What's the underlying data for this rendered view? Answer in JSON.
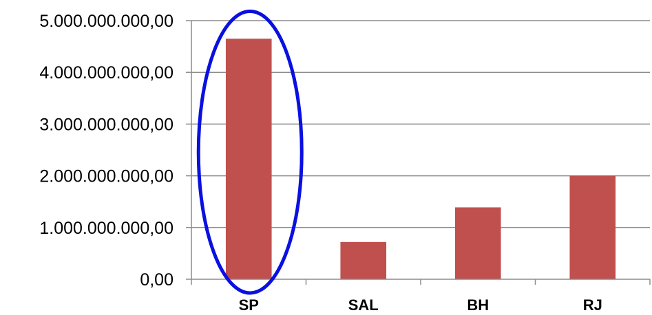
{
  "chart_data": {
    "type": "bar",
    "categories": [
      "SP",
      "SAL",
      "BH",
      "RJ"
    ],
    "values": [
      4650000000,
      720000000,
      1390000000,
      2000000000
    ],
    "ylim": [
      0,
      5000000000
    ],
    "yticks": [
      0,
      1000000000,
      2000000000,
      3000000000,
      4000000000,
      5000000000
    ],
    "ytick_labels": [
      "0,00",
      "1.000.000.000,00",
      "2.000.000.000,00",
      "3.000.000.000,00",
      "4.000.000.000,00",
      "5.000.000.000,00"
    ],
    "grid": true,
    "legend": "none",
    "bar_color": "#c0504d",
    "grid_color": "#8c8c8c",
    "highlight": {
      "category": "SP",
      "shape": "ellipse",
      "color": "#0a10e0"
    }
  }
}
